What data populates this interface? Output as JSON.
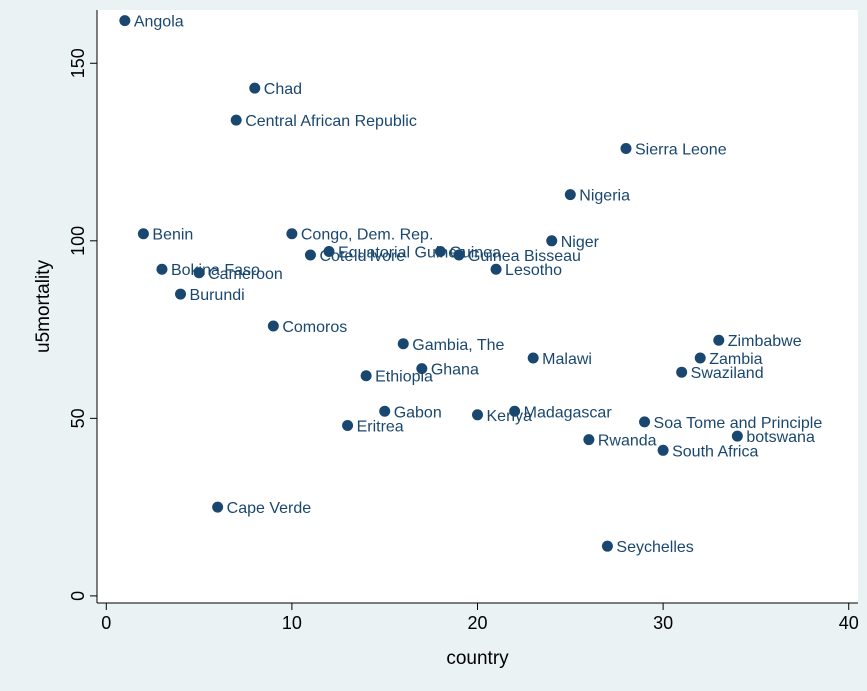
{
  "chart_data": {
    "type": "scatter",
    "xlabel": "country",
    "ylabel": "u5mortality",
    "xlim": [
      -0.5,
      40.5
    ],
    "ylim": [
      -2,
      165
    ],
    "xticks": [
      0,
      10,
      20,
      30,
      40
    ],
    "yticks": [
      0,
      50,
      100,
      150
    ],
    "grid": false,
    "colors": {
      "background": "#eaf2f3",
      "plot_background": "#ffffff",
      "marker": "#1a476f",
      "label": "#1a476f"
    },
    "points": [
      {
        "x": 1,
        "y": 162,
        "label": "Angola"
      },
      {
        "x": 2,
        "y": 102,
        "label": "Benin"
      },
      {
        "x": 3,
        "y": 92,
        "label": "Bokina Faso"
      },
      {
        "x": 4,
        "y": 85,
        "label": "Burundi"
      },
      {
        "x": 5,
        "y": 91,
        "label": "Cameroon"
      },
      {
        "x": 6,
        "y": 25,
        "label": "Cape Verde"
      },
      {
        "x": 7,
        "y": 134,
        "label": "Central African Republic"
      },
      {
        "x": 8,
        "y": 143,
        "label": "Chad"
      },
      {
        "x": 9,
        "y": 76,
        "label": "Comoros"
      },
      {
        "x": 10,
        "y": 102,
        "label": "Congo, Dem. Rep."
      },
      {
        "x": 11,
        "y": 96,
        "label": "Cote d'Ivore"
      },
      {
        "x": 12,
        "y": 97,
        "label": "Equatorial Guinea"
      },
      {
        "x": 13,
        "y": 48,
        "label": "Eritrea"
      },
      {
        "x": 14,
        "y": 62,
        "label": "Ethiopia"
      },
      {
        "x": 15,
        "y": 52,
        "label": "Gabon"
      },
      {
        "x": 16,
        "y": 71,
        "label": "Gambia, The"
      },
      {
        "x": 17,
        "y": 64,
        "label": "Ghana"
      },
      {
        "x": 18,
        "y": 97,
        "label": "Guinea"
      },
      {
        "x": 19,
        "y": 96,
        "label": "Guinea Bisseau"
      },
      {
        "x": 20,
        "y": 51,
        "label": "Kenya"
      },
      {
        "x": 21,
        "y": 92,
        "label": "Lesotho"
      },
      {
        "x": 22,
        "y": 52,
        "label": "Madagascar"
      },
      {
        "x": 23,
        "y": 67,
        "label": "Malawi"
      },
      {
        "x": 24,
        "y": 100,
        "label": "Niger"
      },
      {
        "x": 25,
        "y": 113,
        "label": "Nigeria"
      },
      {
        "x": 26,
        "y": 44,
        "label": "Rwanda"
      },
      {
        "x": 27,
        "y": 14,
        "label": "Seychelles"
      },
      {
        "x": 28,
        "y": 126,
        "label": "Sierra Leone"
      },
      {
        "x": 29,
        "y": 49,
        "label": "Soa Tome and Principle"
      },
      {
        "x": 30,
        "y": 41,
        "label": "South Africa"
      },
      {
        "x": 31,
        "y": 63,
        "label": "Swaziland"
      },
      {
        "x": 32,
        "y": 67,
        "label": "Zambia"
      },
      {
        "x": 33,
        "y": 72,
        "label": "Zimbabwe"
      },
      {
        "x": 34,
        "y": 45,
        "label": "botswana"
      }
    ]
  }
}
